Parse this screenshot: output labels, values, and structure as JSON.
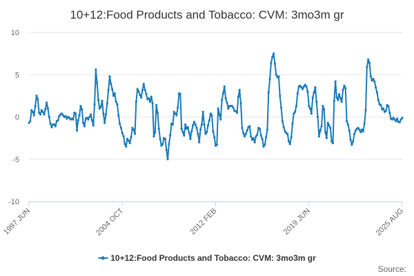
{
  "chart_data": {
    "type": "line",
    "title": "10+12:Food Products and Tobacco: CVM: 3mo3m gr",
    "ylim": [
      -10,
      10
    ],
    "yticks": [
      -10,
      -5,
      0,
      5,
      10
    ],
    "xlabel": "",
    "ylabel": "",
    "x_tick_labels": [
      "1997 JUN",
      "2004 OCT",
      "2012 FEB",
      "2019 JUN",
      "2025 AUG"
    ],
    "x_start": "1997 JUN",
    "x_end": "2025 AUG",
    "legend": "top-bottom-center",
    "credits": "Source:",
    "series": [
      {
        "name": "10+12:Food Products and Tobacco: CVM: 3mo3m gr",
        "color": "#1a7ab8",
        "values": [
          -0.7,
          -0.5,
          0.8,
          0.6,
          0.2,
          1.3,
          2.5,
          2.1,
          0.5,
          0.3,
          0.8,
          0.6,
          0.3,
          0.9,
          1.7,
          1.0,
          0.0,
          -0.8,
          -1.2,
          -0.9,
          -0.9,
          -1.1,
          -0.5,
          -0.4,
          0.1,
          0.3,
          0.4,
          0.2,
          0.0,
          0.1,
          -0.2,
          0.0,
          -0.1,
          -0.3,
          -0.2,
          -0.3,
          0.5,
          0.4,
          -1.6,
          -0.4,
          0.2,
          1.3,
          0.9,
          -0.7,
          -1.1,
          -0.2,
          -0.1,
          -0.3,
          0.0,
          0.3,
          -0.4,
          -1.0,
          1.5,
          5.6,
          4.0,
          2.0,
          1.0,
          1.2,
          1.9,
          0.4,
          -0.7,
          0.3,
          1.6,
          3.2,
          4.8,
          3.9,
          3.3,
          2.5,
          2.8,
          1.8,
          1.5,
          0.2,
          -0.8,
          -1.3,
          -1.9,
          -2.3,
          -3.2,
          -3.5,
          -2.6,
          -2.8,
          -3.1,
          -2.4,
          -1.3,
          -1.5,
          -2.0,
          1.8,
          3.3,
          3.0,
          2.6,
          2.3,
          3.2,
          3.9,
          3.2,
          2.7,
          2.1,
          2.2,
          1.8,
          2.4,
          1.6,
          -2.3,
          -1.8,
          1.4,
          0.5,
          -1.4,
          -2.6,
          -3.4,
          -3.2,
          -2.5,
          -2.6,
          -3.9,
          -5.0,
          -3.2,
          -2.2,
          -0.8,
          -0.9,
          0.6,
          0.4,
          0.2,
          1.1,
          2.8,
          2.7,
          -1.4,
          -1.8,
          -2.2,
          -0.9,
          -1.4,
          -1.2,
          -1.9,
          -2.6,
          -1.7,
          -1.0,
          -0.6,
          -0.9,
          -1.3,
          -2.0,
          -3.0,
          -1.5,
          -0.9,
          0.6,
          -0.9,
          -2.0,
          -1.8,
          -1.0,
          -0.4,
          0.4,
          0.2,
          -1.7,
          -2.4,
          -3.4,
          -3.3,
          1.0,
          0.3,
          -0.3,
          2.0,
          2.8,
          3.6,
          2.2,
          1.7,
          1.0,
          1.3,
          1.3,
          1.3,
          1.1,
          0.7,
          0.7,
          0.5,
          2.4,
          3.2,
          1.6,
          -1.3,
          -1.9,
          -2.3,
          -2.0,
          -1.6,
          -1.2,
          -1.1,
          -2.3,
          -2.7,
          -2.5,
          -3.0,
          -2.3,
          -2.1,
          -1.3,
          -1.4,
          -2.2,
          -2.6,
          -3.5,
          -3.3,
          -2.4,
          -1.5,
          2.9,
          4.5,
          6.4,
          7.1,
          7.5,
          6.3,
          5.0,
          4.7,
          4.8,
          2.5,
          1.1,
          -0.5,
          -1.2,
          -1.7,
          -1.9,
          -2.0,
          -2.9,
          -3.2,
          -2.4,
          -0.8,
          0.4,
          0.6,
          1.3,
          2.8,
          3.6,
          3.7,
          3.5,
          3.3,
          3.6,
          3.8,
          3.6,
          3.0,
          1.3,
          1.0,
          0.4,
          2.3,
          2.9,
          3.5,
          1.8,
          0.0,
          -2.3,
          -1.6,
          -1.1,
          1.3,
          0.9,
          -1.8,
          -2.5,
          -0.7,
          -1.0,
          -1.3,
          -2.9,
          -3.1,
          1.9,
          4.2,
          2.3,
          2.0,
          2.7,
          2.2,
          1.8,
          3.2,
          3.7,
          3.4,
          -0.5,
          -0.9,
          -1.6,
          -2.7,
          -3.3,
          -2.9,
          -2.0,
          -1.6,
          -1.4,
          -1.3,
          -1.5,
          -1.8,
          -1.5,
          -1.7,
          -0.8,
          0.8,
          5.9,
          6.8,
          6.4,
          4.8,
          4.3,
          4.5,
          4.2,
          3.5,
          2.9,
          2.0,
          1.5,
          1.4,
          0.9,
          1.0,
          0.6,
          0.7,
          1.4,
          1.3,
          0.5,
          -0.2,
          -0.3,
          -0.1,
          -0.3,
          -0.5,
          -0.2,
          -0.6,
          -0.6,
          -0.3,
          -0.1
        ]
      }
    ]
  }
}
